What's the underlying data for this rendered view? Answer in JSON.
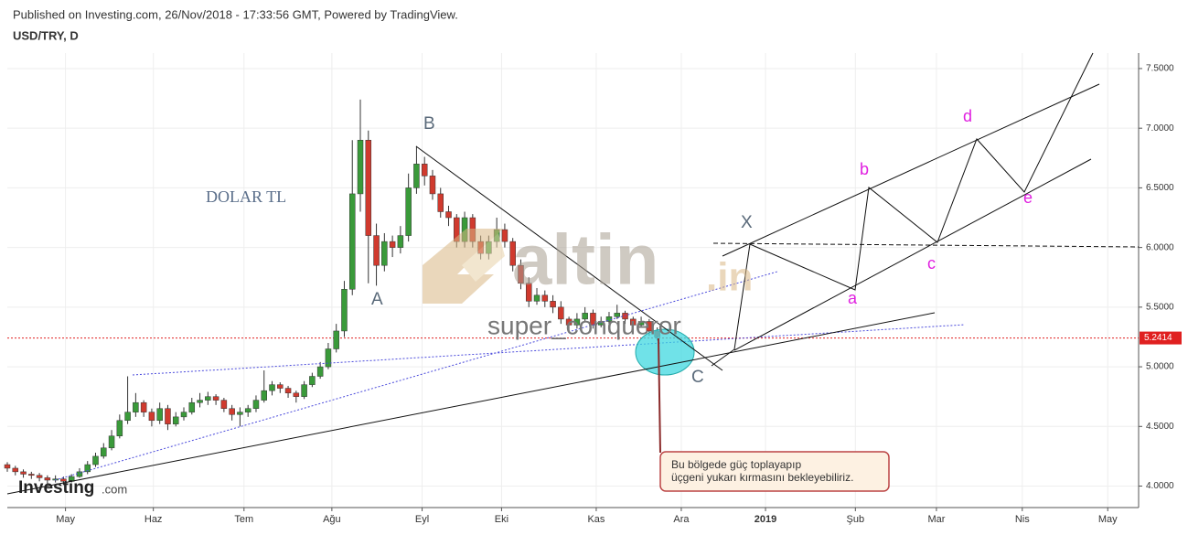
{
  "chart_data": {
    "type": "candlestick",
    "published": "Published on Investing.com, 26/Nov/2018 - 17:33:56 GMT, Powered by TradingView.",
    "symbol": "USD/TRY, D",
    "up_color": "#3a9a3a",
    "down_color": "#d03a2e",
    "grid": true,
    "x": [
      0,
      2,
      4,
      6,
      8,
      10,
      12,
      14,
      16,
      18,
      20,
      22,
      24,
      26,
      28,
      30,
      32,
      34,
      36,
      38,
      40,
      42,
      44,
      46,
      48,
      50,
      52,
      54,
      56,
      58,
      60,
      62,
      64,
      66,
      68,
      70,
      72,
      74,
      76,
      78,
      80,
      82,
      84,
      86,
      88,
      90,
      92,
      94,
      96,
      98,
      100,
      102,
      104,
      106,
      108,
      110,
      112,
      114,
      116,
      118,
      120,
      122,
      124,
      126,
      128,
      130,
      132,
      134,
      136,
      138,
      140,
      142,
      144,
      146,
      148,
      150,
      152,
      154,
      156,
      158,
      160,
      162
    ],
    "open": [
      4.18,
      4.15,
      4.12,
      4.1,
      4.09,
      4.07,
      4.05,
      4.06,
      4.04,
      4.08,
      4.12,
      4.18,
      4.25,
      4.32,
      4.42,
      4.55,
      4.62,
      4.7,
      4.62,
      4.55,
      4.65,
      4.52,
      4.58,
      4.62,
      4.7,
      4.72,
      4.75,
      4.72,
      4.65,
      4.6,
      4.62,
      4.65,
      4.72,
      4.8,
      4.85,
      4.82,
      4.78,
      4.75,
      4.85,
      4.92,
      5.0,
      5.15,
      5.3,
      5.65,
      6.45,
      6.9,
      6.1,
      5.85,
      6.05,
      6.0,
      6.1,
      6.5,
      6.7,
      6.6,
      6.45,
      6.3,
      6.25,
      6.05,
      6.25,
      6.05,
      5.95,
      6.05,
      6.15,
      6.05,
      5.85,
      5.7,
      5.55,
      5.6,
      5.55,
      5.5,
      5.4,
      5.35,
      5.4,
      5.45,
      5.35,
      5.38,
      5.42,
      5.45,
      5.4,
      5.35,
      5.38,
      5.3
    ],
    "high": [
      4.2,
      4.17,
      4.14,
      4.12,
      4.11,
      4.09,
      4.09,
      4.08,
      4.1,
      4.15,
      4.21,
      4.28,
      4.36,
      4.47,
      4.6,
      4.92,
      4.78,
      4.72,
      4.65,
      4.7,
      4.68,
      4.62,
      4.66,
      4.74,
      4.78,
      4.79,
      4.77,
      4.74,
      4.68,
      4.66,
      4.68,
      4.76,
      4.97,
      4.88,
      4.87,
      4.84,
      4.8,
      4.88,
      4.95,
      5.04,
      5.2,
      5.36,
      5.72,
      6.9,
      7.24,
      6.98,
      6.2,
      6.12,
      6.1,
      6.18,
      6.62,
      6.85,
      6.76,
      6.65,
      6.5,
      6.35,
      6.28,
      6.3,
      6.28,
      6.1,
      6.1,
      6.25,
      6.2,
      6.08,
      5.9,
      5.75,
      5.66,
      5.64,
      5.6,
      5.55,
      5.42,
      5.45,
      5.5,
      5.48,
      5.42,
      5.46,
      5.52,
      5.47,
      5.42,
      5.42,
      5.4,
      5.33
    ],
    "low": [
      4.12,
      4.09,
      4.07,
      4.06,
      4.04,
      4.02,
      4.03,
      4.01,
      4.03,
      4.07,
      4.1,
      4.16,
      4.23,
      4.3,
      4.4,
      4.52,
      4.58,
      4.58,
      4.5,
      4.52,
      4.47,
      4.5,
      4.55,
      4.6,
      4.66,
      4.68,
      4.68,
      4.62,
      4.55,
      4.5,
      4.58,
      4.62,
      4.7,
      4.76,
      4.78,
      4.74,
      4.7,
      4.73,
      4.83,
      4.9,
      4.98,
      5.12,
      5.25,
      5.6,
      6.3,
      5.7,
      5.68,
      5.8,
      5.92,
      5.95,
      6.05,
      6.45,
      6.52,
      6.4,
      6.25,
      6.18,
      6.0,
      6.0,
      6.0,
      5.9,
      5.9,
      6.0,
      6.0,
      5.8,
      5.65,
      5.5,
      5.52,
      5.5,
      5.45,
      5.36,
      5.3,
      5.32,
      5.38,
      5.32,
      5.33,
      5.36,
      5.4,
      5.36,
      5.3,
      5.33,
      5.26,
      5.22
    ],
    "close": [
      4.15,
      4.12,
      4.1,
      4.09,
      4.07,
      4.05,
      4.06,
      4.04,
      4.08,
      4.12,
      4.18,
      4.25,
      4.32,
      4.42,
      4.55,
      4.62,
      4.7,
      4.62,
      4.55,
      4.65,
      4.52,
      4.58,
      4.62,
      4.7,
      4.72,
      4.75,
      4.72,
      4.65,
      4.6,
      4.62,
      4.65,
      4.72,
      4.8,
      4.85,
      4.82,
      4.78,
      4.75,
      4.85,
      4.92,
      5.0,
      5.15,
      5.3,
      5.65,
      6.45,
      6.9,
      6.1,
      5.85,
      6.05,
      6.0,
      6.1,
      6.5,
      6.7,
      6.6,
      6.45,
      6.3,
      6.25,
      6.05,
      6.25,
      6.05,
      5.95,
      6.05,
      6.15,
      6.05,
      5.85,
      5.7,
      5.55,
      5.6,
      5.55,
      5.5,
      5.4,
      5.35,
      5.4,
      5.45,
      5.35,
      5.38,
      5.42,
      5.45,
      5.4,
      5.35,
      5.38,
      5.3,
      5.25
    ],
    "xlim": [
      0,
      282
    ],
    "xticks": [
      {
        "value": 14.5,
        "label": "May"
      },
      {
        "value": 36.4,
        "label": "Haz"
      },
      {
        "value": 59,
        "label": "Tem"
      },
      {
        "value": 80.9,
        "label": "Ağu"
      },
      {
        "value": 103.4,
        "label": "Eyl"
      },
      {
        "value": 123.2,
        "label": "Eki"
      },
      {
        "value": 146.8,
        "label": "Kas"
      },
      {
        "value": 168,
        "label": "Ara"
      },
      {
        "value": 189,
        "label": "2019"
      },
      {
        "value": 211.4,
        "label": "Şub"
      },
      {
        "value": 231.6,
        "label": "Mar"
      },
      {
        "value": 253,
        "label": "Nis"
      },
      {
        "value": 274.3,
        "label": "May"
      }
    ],
    "ylim": [
      3.82,
      7.63
    ],
    "yticks": [
      {
        "value": 4,
        "label": "4.0000"
      },
      {
        "value": 4.5,
        "label": "4.5000"
      },
      {
        "value": 5,
        "label": "5.0000"
      },
      {
        "value": 5.5,
        "label": "5.5000"
      },
      {
        "value": 6,
        "label": "6.0000"
      },
      {
        "value": 6.5,
        "label": "6.5000"
      },
      {
        "value": 7,
        "label": "7.0000"
      },
      {
        "value": 7.5,
        "label": "7.5000"
      }
    ],
    "last_price": 5.2414,
    "annotations": [
      "DOLAR TL",
      "A",
      "B",
      "C",
      "X",
      "a",
      "b",
      "c",
      "d",
      "e"
    ],
    "callout": [
      "Bu bölgede güç toplayapıp",
      "üçgeni yukarı kırmasını bekleyebiliriz."
    ],
    "watermark": [
      "altin",
      ".in",
      "super_conqueror"
    ],
    "logo": [
      "Investing",
      ".com"
    ]
  }
}
